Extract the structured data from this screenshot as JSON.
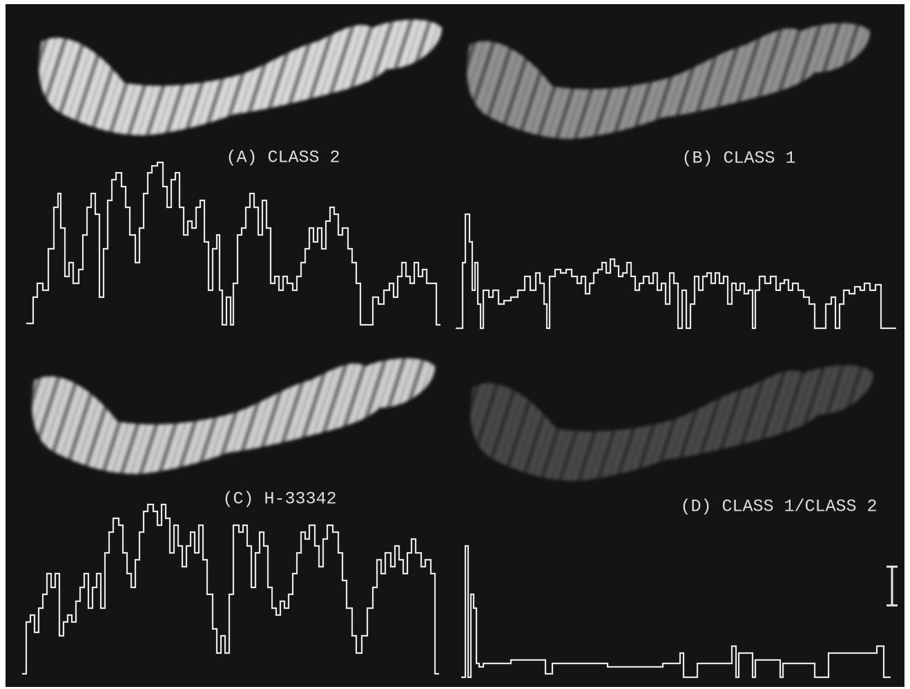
{
  "panels": [
    {
      "label": "(A) CLASS 2"
    },
    {
      "label": "(B) CLASS 1"
    },
    {
      "label": "(C) H-33342"
    },
    {
      "label": "(D) CLASS 1/CLASS 2"
    }
  ]
}
